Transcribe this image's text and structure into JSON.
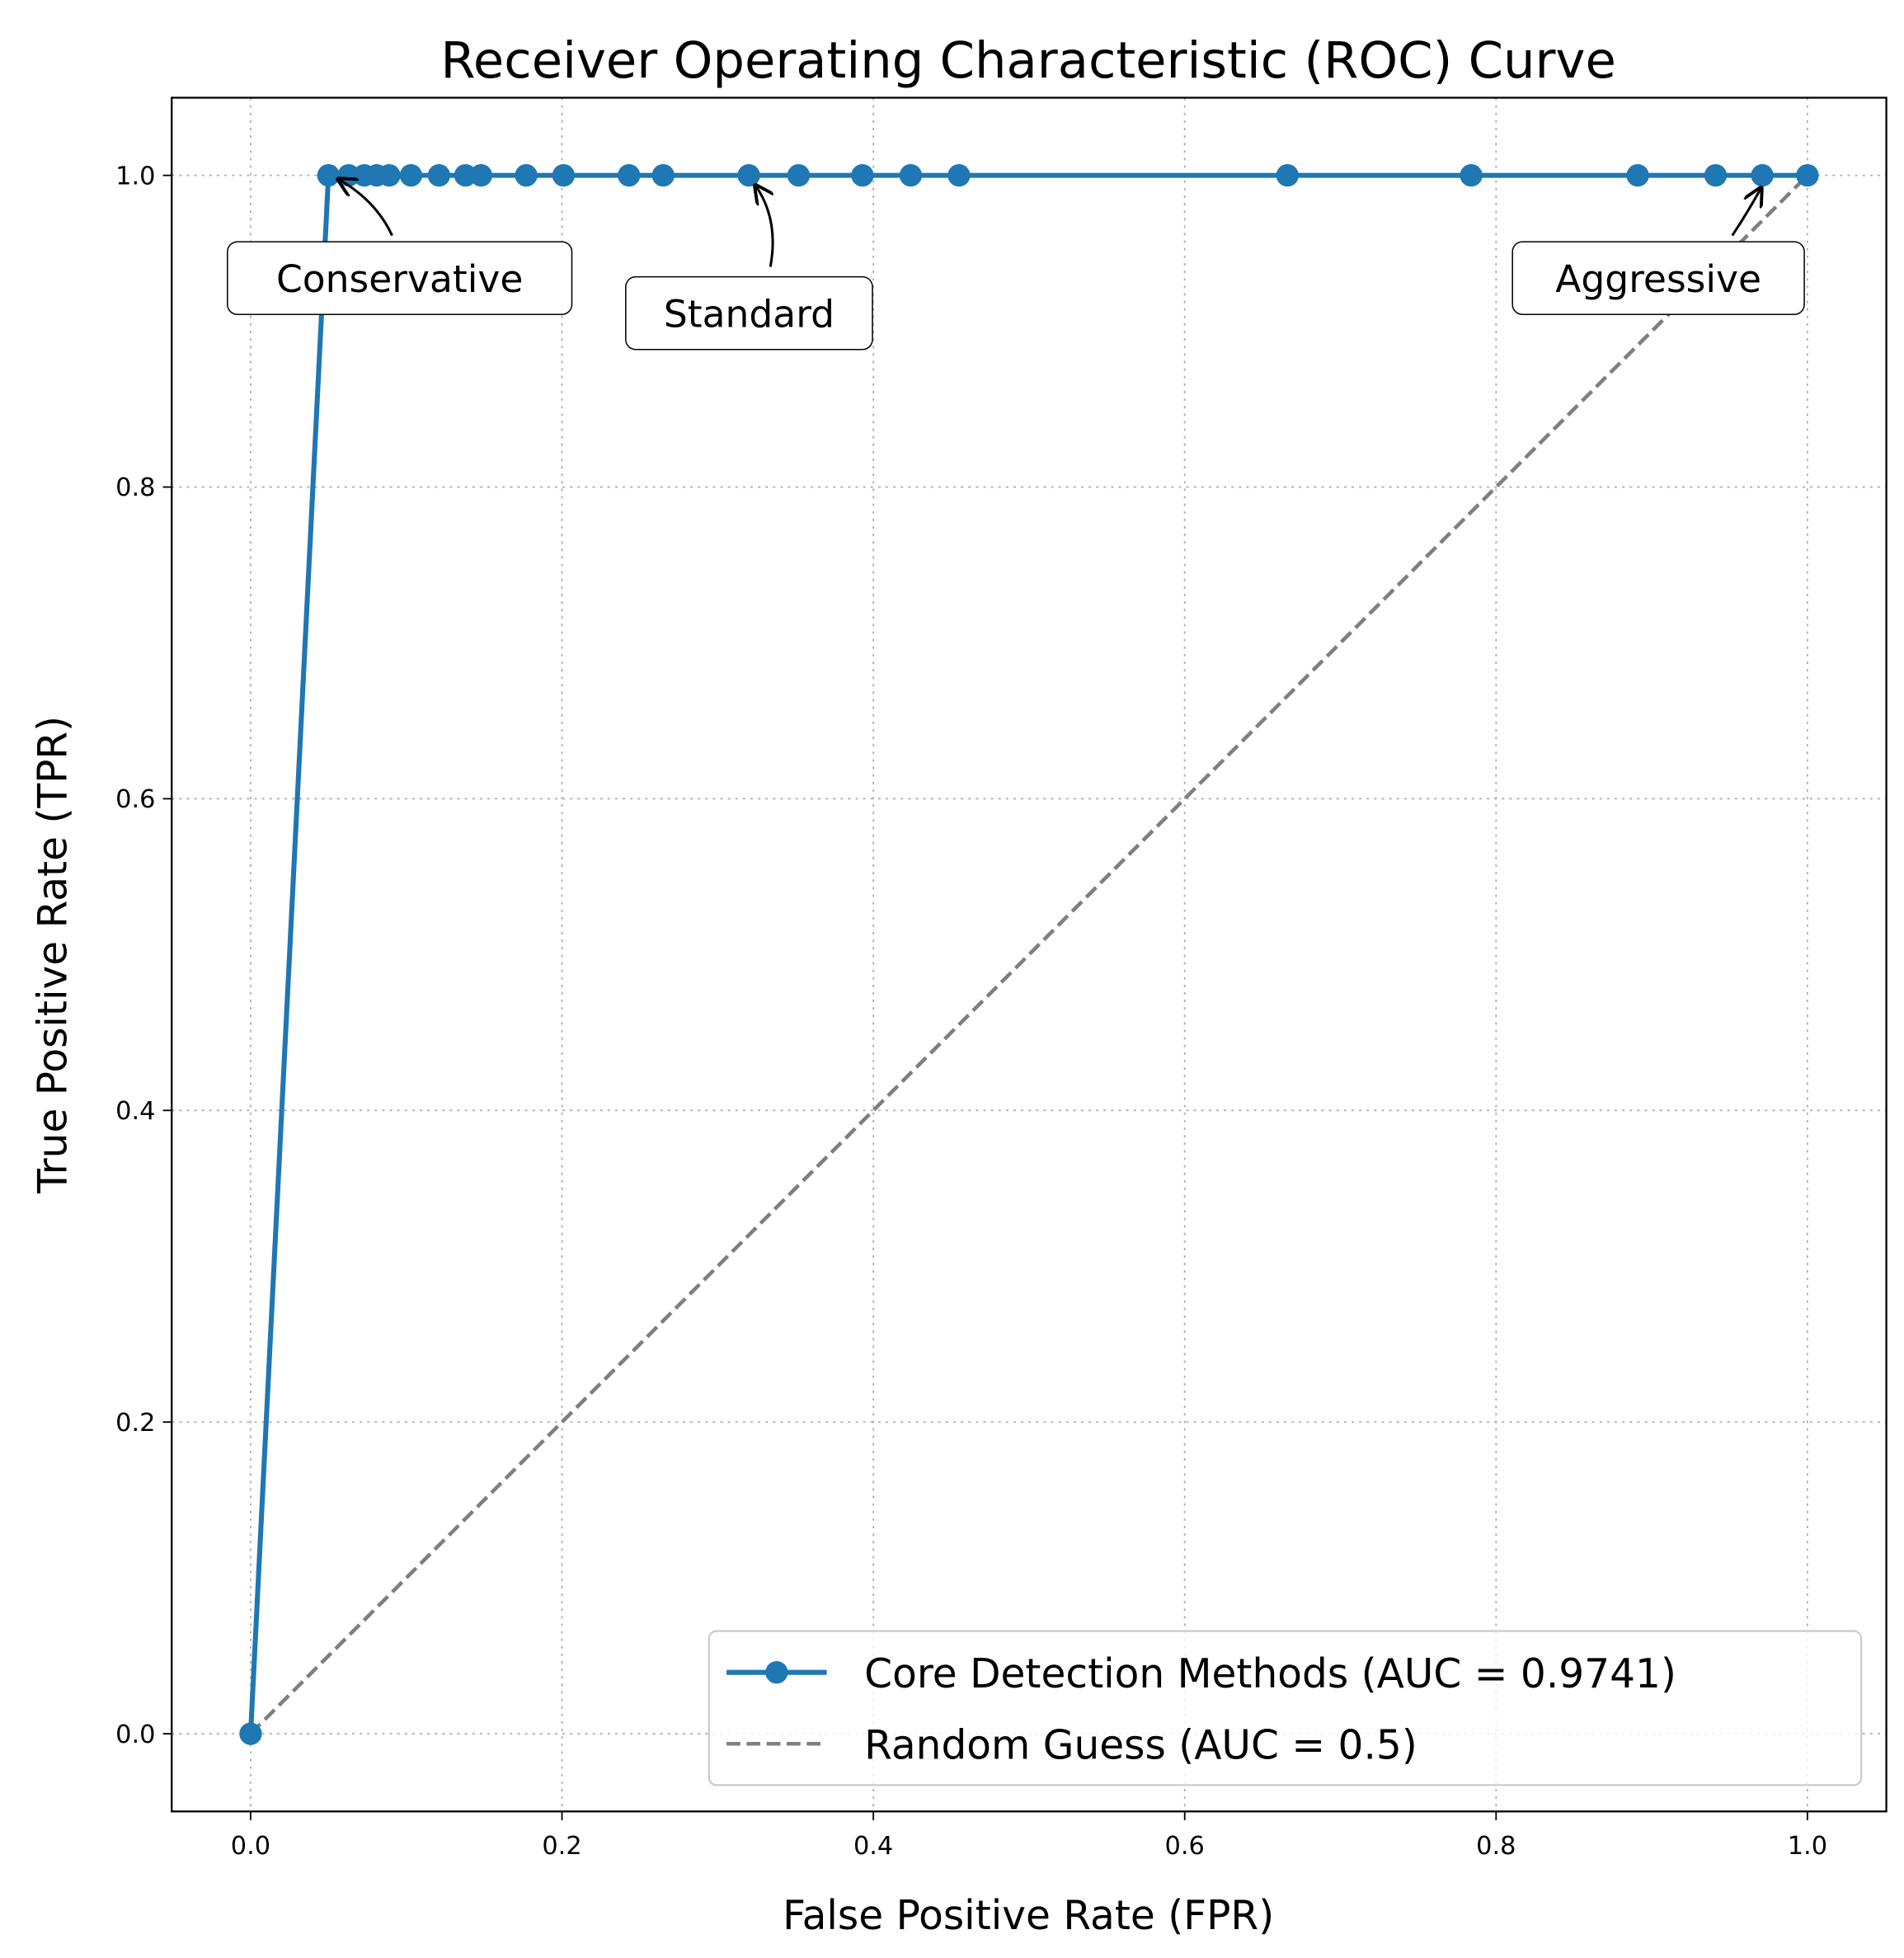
{
  "chart_data": {
    "type": "line",
    "title": "Receiver Operating Characteristic (ROC) Curve",
    "xlabel": "False Positive Rate (FPR)",
    "ylabel": "True Positive Rate (TPR)",
    "xlim": [
      -0.05,
      1.05
    ],
    "ylim": [
      -0.05,
      1.05
    ],
    "xticks": [
      "0.0",
      "0.2",
      "0.4",
      "0.6",
      "0.8",
      "1.0"
    ],
    "yticks": [
      "0.0",
      "0.2",
      "0.4",
      "0.6",
      "0.8",
      "1.0"
    ],
    "grid": true,
    "legend_placement": "lower-right",
    "series": [
      {
        "name": "Core Detection Methods (AUC = 0.9741)",
        "color": "#1f77b4",
        "style": "solid-with-markers",
        "x": [
          0.0,
          0.05,
          0.063,
          0.073,
          0.081,
          0.089,
          0.103,
          0.121,
          0.138,
          0.148,
          0.177,
          0.201,
          0.243,
          0.265,
          0.32,
          0.352,
          0.393,
          0.424,
          0.455,
          0.666,
          0.784,
          0.891,
          0.941,
          0.971,
          1.0
        ],
        "y": [
          0.0,
          1,
          1,
          1,
          1,
          1,
          1,
          1,
          1,
          1,
          1,
          1,
          1,
          1,
          1,
          1,
          1,
          1,
          1,
          1,
          1,
          1,
          1,
          1,
          1
        ]
      },
      {
        "name": "Random Guess (AUC = 0.5)",
        "color": "#7f7f7f",
        "style": "dashed",
        "x": [
          0,
          1
        ],
        "y": [
          0,
          1
        ]
      }
    ],
    "annotations": [
      {
        "text": "Conservative",
        "point": [
          0.05,
          1.0
        ]
      },
      {
        "text": "Standard",
        "point": [
          0.32,
          1.0
        ]
      },
      {
        "text": "Aggressive",
        "point": [
          0.971,
          1.0
        ]
      }
    ]
  }
}
